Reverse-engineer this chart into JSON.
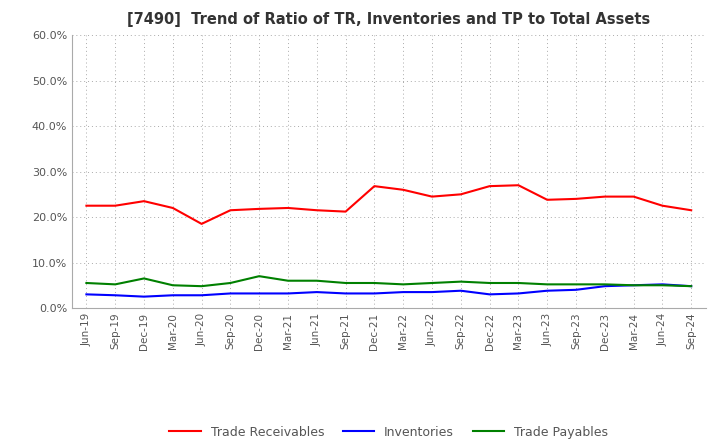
{
  "title": "[7490]  Trend of Ratio of TR, Inventories and TP to Total Assets",
  "x_labels": [
    "Jun-19",
    "Sep-19",
    "Dec-19",
    "Mar-20",
    "Jun-20",
    "Sep-20",
    "Dec-20",
    "Mar-21",
    "Jun-21",
    "Sep-21",
    "Dec-21",
    "Mar-22",
    "Jun-22",
    "Sep-22",
    "Dec-22",
    "Mar-23",
    "Jun-23",
    "Sep-23",
    "Dec-23",
    "Mar-24",
    "Jun-24",
    "Sep-24"
  ],
  "trade_receivables": [
    22.5,
    22.5,
    23.5,
    22.0,
    18.5,
    21.5,
    21.8,
    22.0,
    21.5,
    21.2,
    26.8,
    26.0,
    24.5,
    25.0,
    26.8,
    27.0,
    23.8,
    24.0,
    24.5,
    24.5,
    22.5,
    21.5
  ],
  "inventories": [
    3.0,
    2.8,
    2.5,
    2.8,
    2.8,
    3.2,
    3.2,
    3.2,
    3.5,
    3.2,
    3.2,
    3.5,
    3.5,
    3.8,
    3.0,
    3.2,
    3.8,
    4.0,
    4.8,
    5.0,
    5.2,
    4.8
  ],
  "trade_payables": [
    5.5,
    5.2,
    6.5,
    5.0,
    4.8,
    5.5,
    7.0,
    6.0,
    6.0,
    5.5,
    5.5,
    5.2,
    5.5,
    5.8,
    5.5,
    5.5,
    5.2,
    5.2,
    5.2,
    5.0,
    5.0,
    4.8
  ],
  "tr_color": "#FF0000",
  "inv_color": "#0000FF",
  "tp_color": "#008000",
  "ylim": [
    0,
    60
  ],
  "yticks": [
    0,
    10,
    20,
    30,
    40,
    50,
    60
  ],
  "background_color": "#FFFFFF",
  "grid_color": "#AAAAAA",
  "title_color": "#333333",
  "tick_color": "#555555",
  "legend_labels": [
    "Trade Receivables",
    "Inventories",
    "Trade Payables"
  ]
}
